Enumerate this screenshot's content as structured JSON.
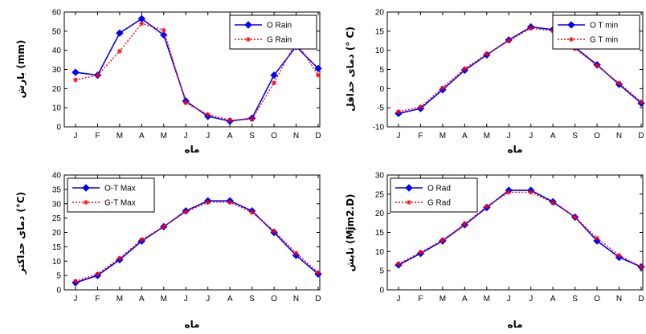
{
  "chart_data": [
    {
      "type": "line",
      "categories": [
        "J",
        "F",
        "M",
        "A",
        "M",
        "J",
        "J",
        "A",
        "S",
        "O",
        "N",
        "D"
      ],
      "ylim": [
        0,
        60
      ],
      "yticks": [
        0,
        10,
        20,
        30,
        40,
        50,
        60
      ],
      "xlabel": "ماه",
      "ylabel": "بارش (mm)",
      "legend": "top-right",
      "grid": false,
      "series": [
        {
          "name": "O Rain",
          "color": "#0000ff",
          "style": "solid",
          "marker": "diamond",
          "values": [
            28.5,
            27,
            49,
            56.5,
            48,
            13.5,
            5.5,
            3,
            4.5,
            27,
            42,
            30.5
          ]
        },
        {
          "name": "G Rain",
          "color": "#ff0000",
          "style": "dotted",
          "marker": "star",
          "values": [
            24.5,
            27,
            39.5,
            54,
            50.5,
            12.5,
            6.5,
            3.5,
            4,
            23,
            44.5,
            27
          ]
        }
      ]
    },
    {
      "type": "line",
      "categories": [
        "J",
        "F",
        "M",
        "A",
        "M",
        "J",
        "J",
        "A",
        "S",
        "O",
        "N",
        "D"
      ],
      "ylim": [
        -10,
        20
      ],
      "yticks": [
        -10,
        -5,
        0,
        5,
        10,
        15,
        20
      ],
      "xlabel": "ماه",
      "ylabel": "دمای حداقل (° C)",
      "legend": "top-right",
      "grid": false,
      "series": [
        {
          "name": "O T min",
          "color": "#0000ff",
          "style": "solid",
          "marker": "diamond",
          "values": [
            -6.5,
            -5.2,
            -0.3,
            4.8,
            8.8,
            12.7,
            16.1,
            15.4,
            10.8,
            6.2,
            1.1,
            -3.8
          ]
        },
        {
          "name": "G T min",
          "color": "#ff0000",
          "style": "dotted",
          "marker": "star",
          "values": [
            -6,
            -4.8,
            0.2,
            5.2,
            9,
            12.5,
            15.8,
            15.1,
            10.5,
            6,
            1.4,
            -3.5
          ]
        }
      ]
    },
    {
      "type": "line",
      "categories": [
        "J",
        "F",
        "M",
        "A",
        "M",
        "J",
        "J",
        "A",
        "S",
        "O",
        "N",
        "D"
      ],
      "ylim": [
        0,
        40
      ],
      "yticks": [
        0,
        5,
        10,
        15,
        20,
        25,
        30,
        35,
        40
      ],
      "xlabel": "ماه",
      "ylabel": "دمای حداکثر (°C)",
      "legend": "top-left",
      "grid": false,
      "series": [
        {
          "name": "O-T Max",
          "color": "#0000ff",
          "style": "solid",
          "marker": "diamond",
          "values": [
            2.5,
            5,
            10.5,
            17,
            22,
            27.5,
            31,
            31,
            27.5,
            20,
            12,
            5.5
          ]
        },
        {
          "name": "G-T Max",
          "color": "#ff0000",
          "style": "dotted",
          "marker": "star",
          "values": [
            3,
            5.5,
            11,
            17.5,
            22,
            27.2,
            30.5,
            30.5,
            27,
            20.5,
            12.8,
            6
          ]
        }
      ]
    },
    {
      "type": "line",
      "categories": [
        "J",
        "F",
        "M",
        "A",
        "M",
        "J",
        "J",
        "A",
        "S",
        "O",
        "N",
        "D"
      ],
      "ylim": [
        0,
        30
      ],
      "yticks": [
        0,
        5,
        10,
        15,
        20,
        25,
        30
      ],
      "xlabel": "ماه",
      "ylabel": "تابش (Mjm2.D)",
      "legend": "top-left",
      "grid": false,
      "series": [
        {
          "name": "O Rad",
          "color": "#0000ff",
          "style": "solid",
          "marker": "diamond",
          "values": [
            6.5,
            9.5,
            12.8,
            17,
            21.5,
            26,
            26,
            23,
            19,
            12.8,
            8.5,
            6
          ]
        },
        {
          "name": "G Rad",
          "color": "#ff0000",
          "style": "dotted",
          "marker": "star",
          "values": [
            6.8,
            9.8,
            13,
            17.2,
            21.8,
            25.5,
            25.5,
            22.8,
            19,
            13.5,
            9,
            6
          ]
        }
      ]
    }
  ]
}
